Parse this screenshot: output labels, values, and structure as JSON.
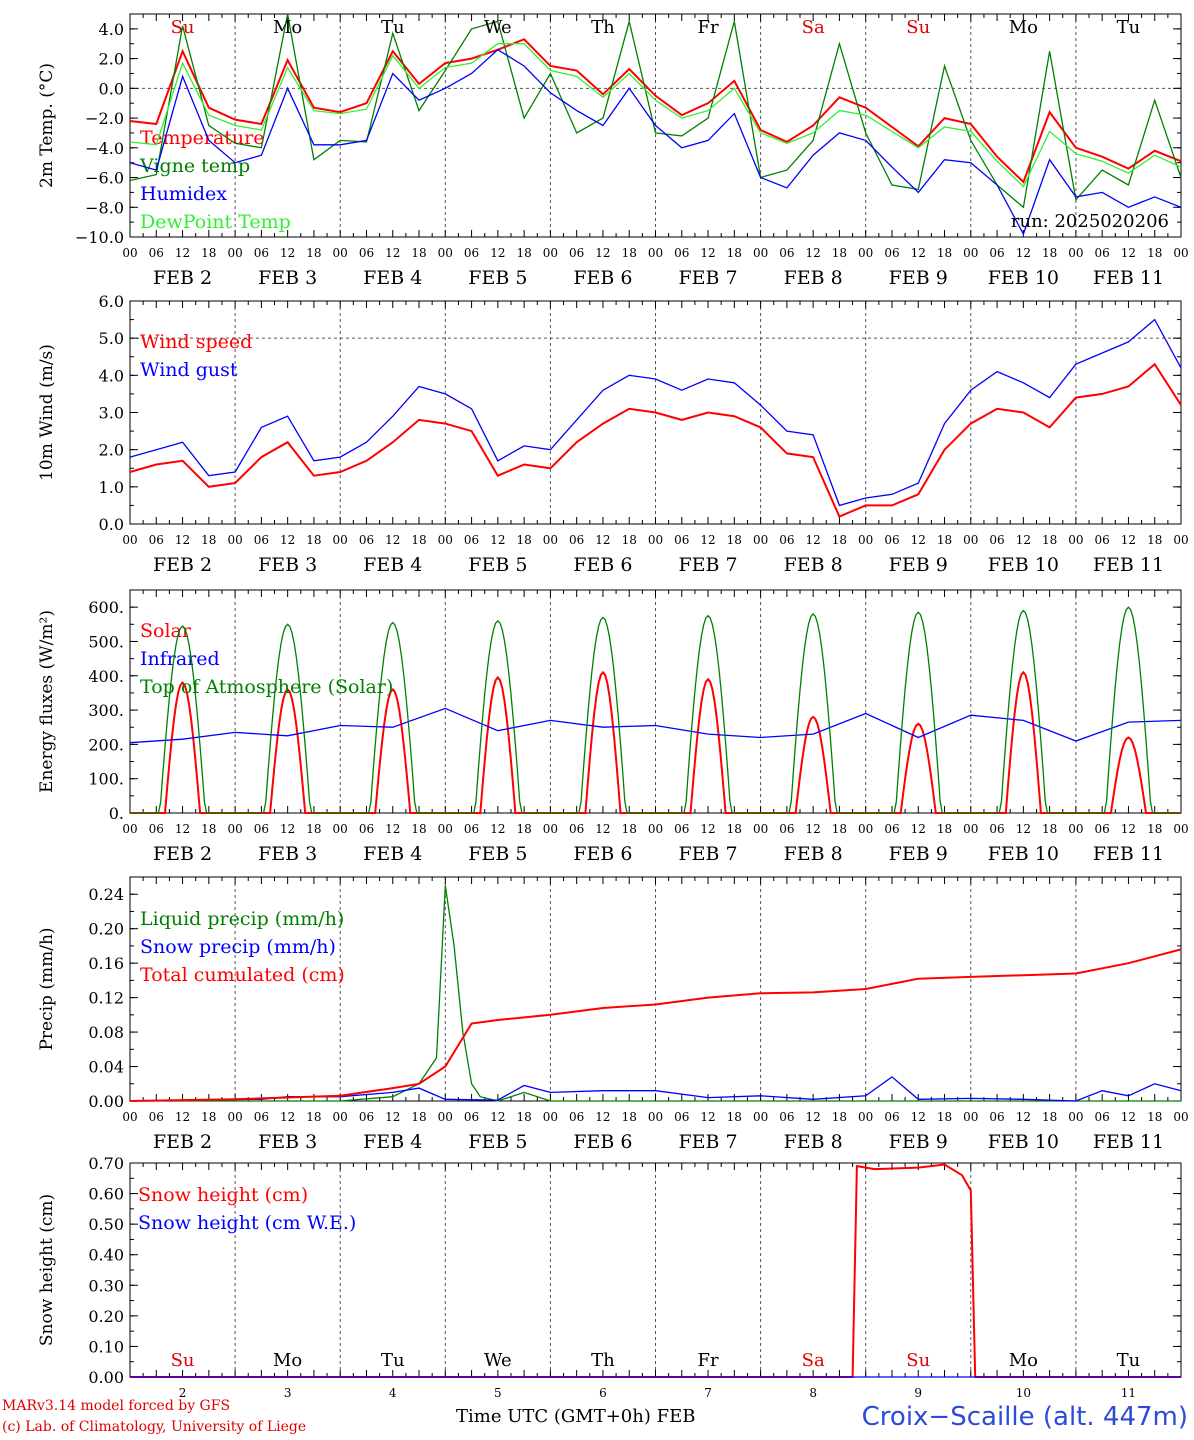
{
  "footer": {
    "model": "MARv3.14 model forced by GFS",
    "lab": "(c) Lab. of Climatology, University of Liege",
    "time_axis": "Time UTC (GMT+0h) FEB",
    "station": "Croix−Scaille (alt. 447m)"
  },
  "colors": {
    "red": "#ff0000",
    "green": "#008000",
    "blue": "#0000ff",
    "lightgreen": "#33ee33",
    "grid": "#555555"
  },
  "hour_ticks": [
    "00",
    "06",
    "12",
    "18"
  ],
  "day_labels": [
    "FEB  2",
    "FEB  3",
    "FEB  4",
    "FEB  5",
    "FEB  6",
    "FEB  7",
    "FEB  8",
    "FEB  9",
    "FEB 10",
    "FEB 11"
  ],
  "weekday_labels": [
    {
      "text": "Su",
      "color": "#e00000"
    },
    {
      "text": "Mo",
      "color": "#000000"
    },
    {
      "text": "Tu",
      "color": "#000000"
    },
    {
      "text": "We",
      "color": "#000000"
    },
    {
      "text": "Th",
      "color": "#000000"
    },
    {
      "text": "Fr",
      "color": "#000000"
    },
    {
      "text": "Sa",
      "color": "#e00000"
    },
    {
      "text": "Su",
      "color": "#e00000"
    },
    {
      "text": "Mo",
      "color": "#000000"
    },
    {
      "text": "Tu",
      "color": "#000000"
    }
  ],
  "day_numbers": [
    "2",
    "3",
    "4",
    "5",
    "6",
    "7",
    "8",
    "9",
    "10",
    "11"
  ],
  "chart_data": [
    {
      "type": "line",
      "ylabel": "2m Temp. (°C)",
      "ylim": [
        -10,
        5
      ],
      "yticks": [
        -10,
        -8,
        -6,
        -4,
        -2,
        0,
        2,
        4
      ],
      "ytick_labels": [
        "−10.0",
        "−8.0",
        "−6.0",
        "−4.0",
        "−2.0",
        "0.0",
        "2.0",
        "4.0"
      ],
      "dashed_y": [
        0
      ],
      "annotation": "run: 2025020206",
      "x_hours": [
        0,
        6,
        12,
        18,
        24,
        30,
        36,
        42,
        48,
        54,
        60,
        66,
        72,
        78,
        84,
        90,
        96,
        102,
        108,
        114,
        120,
        126,
        132,
        138,
        144,
        150,
        156,
        162,
        168,
        174,
        180,
        186,
        192,
        198,
        204,
        210,
        216,
        222,
        228,
        234,
        240
      ],
      "series": [
        {
          "name": "Temperature",
          "color": "#ff0000",
          "values": [
            -2.2,
            -2.4,
            2.5,
            -1.3,
            -2.1,
            -2.4,
            1.9,
            -1.3,
            -1.6,
            -1.0,
            2.5,
            0.3,
            1.7,
            2.0,
            2.6,
            3.3,
            1.5,
            1.2,
            -0.4,
            1.3,
            -0.5,
            -1.8,
            -1.0,
            0.5,
            -2.8,
            -3.6,
            -2.5,
            -0.6,
            -1.3,
            -2.6,
            -3.9,
            -2.0,
            -2.4,
            -4.6,
            -6.3,
            -1.6,
            -4.0,
            -4.6,
            -5.4,
            -4.2,
            -4.9
          ]
        },
        {
          "name": "Vigne temp",
          "color": "#008000",
          "values": [
            -6.2,
            -5.8,
            4.2,
            -2.5,
            -3.7,
            -4.0,
            5.0,
            -4.8,
            -3.5,
            -3.6,
            3.7,
            -1.5,
            1.2,
            4.0,
            4.5,
            -2.0,
            1.0,
            -3.0,
            -2.0,
            4.5,
            -3.0,
            -3.2,
            -2.0,
            4.5,
            -6.0,
            -5.5,
            -3.5,
            3.0,
            -3.0,
            -6.5,
            -6.8,
            1.5,
            -3.5,
            -6.5,
            -8.0,
            2.5,
            -7.5,
            -5.5,
            -6.5,
            -0.8,
            -6.0
          ]
        },
        {
          "name": "Humidex",
          "color": "#0000ff",
          "values": [
            -5.0,
            -5.5,
            0.8,
            -3.5,
            -5.0,
            -4.5,
            0.0,
            -3.8,
            -3.8,
            -3.5,
            1.0,
            -0.8,
            0.0,
            1.0,
            2.6,
            1.5,
            -0.3,
            -1.5,
            -2.5,
            0.0,
            -2.5,
            -4.0,
            -3.5,
            -1.7,
            -6.0,
            -6.7,
            -4.5,
            -3.0,
            -3.5,
            -5.3,
            -7.0,
            -4.8,
            -5.0,
            -6.5,
            -9.8,
            -4.8,
            -7.3,
            -7.0,
            -8.0,
            -7.3,
            -8.0
          ]
        },
        {
          "name": "DewPoint Temp",
          "color": "#33ee33",
          "values": [
            -3.6,
            -3.8,
            1.7,
            -1.8,
            -2.5,
            -2.8,
            1.4,
            -1.5,
            -1.7,
            -1.4,
            2.2,
            0.0,
            1.4,
            1.7,
            3.0,
            3.0,
            1.2,
            0.8,
            -0.6,
            1.0,
            -0.8,
            -2.0,
            -1.5,
            0.0,
            -3.0,
            -3.7,
            -3.0,
            -1.5,
            -1.8,
            -2.9,
            -4.0,
            -2.6,
            -2.9,
            -4.9,
            -6.6,
            -2.9,
            -4.4,
            -4.9,
            -5.7,
            -4.5,
            -5.3
          ]
        }
      ]
    },
    {
      "type": "line",
      "ylabel": "10m Wind (m/s)",
      "ylim": [
        0,
        6
      ],
      "yticks": [
        0,
        1,
        2,
        3,
        4,
        5,
        6
      ],
      "ytick_labels": [
        "0.0",
        "1.0",
        "2.0",
        "3.0",
        "4.0",
        "5.0",
        "6.0"
      ],
      "dashed_y": [
        5
      ],
      "x_hours": [
        0,
        6,
        12,
        18,
        24,
        30,
        36,
        42,
        48,
        54,
        60,
        66,
        72,
        78,
        84,
        90,
        96,
        102,
        108,
        114,
        120,
        126,
        132,
        138,
        144,
        150,
        156,
        162,
        168,
        174,
        180,
        186,
        192,
        198,
        204,
        210,
        216,
        222,
        228,
        234,
        240
      ],
      "series": [
        {
          "name": "Wind speed",
          "color": "#ff0000",
          "values": [
            1.4,
            1.6,
            1.7,
            1.0,
            1.1,
            1.8,
            2.2,
            1.3,
            1.4,
            1.7,
            2.2,
            2.8,
            2.7,
            2.5,
            1.3,
            1.6,
            1.5,
            2.2,
            2.7,
            3.1,
            3.0,
            2.8,
            3.0,
            2.9,
            2.6,
            1.9,
            1.8,
            0.2,
            0.5,
            0.5,
            0.8,
            2.0,
            2.7,
            3.1,
            3.0,
            2.6,
            3.4,
            3.5,
            3.7,
            4.3,
            3.2
          ]
        },
        {
          "name": "Wind gust",
          "color": "#0000ff",
          "values": [
            1.8,
            2.0,
            2.2,
            1.3,
            1.4,
            2.6,
            2.9,
            1.7,
            1.8,
            2.2,
            2.9,
            3.7,
            3.5,
            3.1,
            1.7,
            2.1,
            2.0,
            2.8,
            3.6,
            4.0,
            3.9,
            3.6,
            3.9,
            3.8,
            3.2,
            2.5,
            2.4,
            0.5,
            0.7,
            0.8,
            1.1,
            2.7,
            3.6,
            4.1,
            3.8,
            3.4,
            4.3,
            4.6,
            4.9,
            5.5,
            4.2
          ]
        }
      ]
    },
    {
      "type": "line",
      "ylabel": "Energy fluxes (W/m²)",
      "ylim": [
        0,
        650
      ],
      "yticks": [
        0,
        100,
        200,
        300,
        400,
        500,
        600
      ],
      "ytick_labels": [
        "0.",
        "100.",
        "200.",
        "300.",
        "400.",
        "500.",
        "600."
      ],
      "daily_peak_hour": 12,
      "series": [
        {
          "name": "Solar",
          "color": "#ff0000",
          "daily_peaks": [
            380,
            360,
            360,
            395,
            410,
            390,
            280,
            260,
            410,
            220
          ]
        },
        {
          "name": "Infrared",
          "color": "#0000ff",
          "x_hours": [
            0,
            12,
            24,
            36,
            48,
            60,
            72,
            84,
            96,
            108,
            120,
            132,
            144,
            156,
            168,
            180,
            192,
            204,
            216,
            228,
            240
          ],
          "values": [
            205,
            215,
            235,
            225,
            255,
            250,
            305,
            240,
            270,
            250,
            255,
            230,
            220,
            230,
            290,
            220,
            285,
            270,
            210,
            265,
            270
          ]
        },
        {
          "name": "Top of Atmosphere (Solar)",
          "color": "#008000",
          "daily_peaks": [
            545,
            550,
            555,
            560,
            570,
            575,
            580,
            585,
            590,
            600
          ]
        }
      ]
    },
    {
      "type": "line",
      "ylabel": "Precip (mm/h)",
      "ylim": [
        0,
        0.26
      ],
      "yticks": [
        0,
        0.04,
        0.08,
        0.12,
        0.16,
        0.2,
        0.24
      ],
      "ytick_labels": [
        "0.00",
        "0.04",
        "0.08",
        "0.12",
        "0.16",
        "0.20",
        "0.24"
      ],
      "series": [
        {
          "name": "Liquid precip (mm/h)",
          "color": "#008000",
          "x_hours": [
            0,
            24,
            48,
            60,
            66,
            70,
            72,
            74,
            76,
            78,
            80,
            84,
            90,
            96,
            120,
            240
          ],
          "values": [
            0,
            0,
            0,
            0.005,
            0.02,
            0.05,
            0.25,
            0.18,
            0.08,
            0.02,
            0.005,
            0,
            0.01,
            0,
            0,
            0
          ]
        },
        {
          "name": "Snow precip (mm/h)",
          "color": "#0000ff",
          "x_hours": [
            0,
            30,
            36,
            48,
            60,
            66,
            72,
            84,
            90,
            96,
            108,
            120,
            132,
            144,
            156,
            168,
            174,
            180,
            192,
            204,
            216,
            222,
            228,
            234,
            240
          ],
          "values": [
            0,
            0.002,
            0.005,
            0.005,
            0.01,
            0.015,
            0.002,
            0.001,
            0.018,
            0.01,
            0.012,
            0.012,
            0.004,
            0.006,
            0.002,
            0.006,
            0.028,
            0.002,
            0.003,
            0.002,
            0.0,
            0.012,
            0.006,
            0.02,
            0.012
          ]
        },
        {
          "name": "Total cumulated (cm)",
          "color": "#ff0000",
          "x_hours": [
            0,
            24,
            48,
            60,
            66,
            72,
            78,
            84,
            96,
            108,
            120,
            132,
            144,
            156,
            168,
            180,
            192,
            204,
            216,
            228,
            240
          ],
          "values": [
            0,
            0.002,
            0.006,
            0.015,
            0.02,
            0.04,
            0.09,
            0.094,
            0.1,
            0.108,
            0.112,
            0.12,
            0.125,
            0.126,
            0.13,
            0.142,
            0.144,
            0.146,
            0.148,
            0.16,
            0.176
          ]
        }
      ]
    },
    {
      "type": "line",
      "ylabel": "Snow height (cm)",
      "ylim": [
        0,
        0.7
      ],
      "yticks": [
        0,
        0.1,
        0.2,
        0.3,
        0.4,
        0.5,
        0.6,
        0.7
      ],
      "ytick_labels": [
        "0.00",
        "0.10",
        "0.20",
        "0.30",
        "0.40",
        "0.50",
        "0.60",
        "0.70"
      ],
      "series": [
        {
          "name": "Snow height (cm)",
          "color": "#ff0000",
          "x_hours": [
            0,
            165,
            166,
            170,
            180,
            186,
            190,
            192,
            193,
            240
          ],
          "values": [
            0,
            0,
            0.69,
            0.68,
            0.685,
            0.695,
            0.66,
            0.61,
            0,
            0
          ]
        },
        {
          "name": "Snow height (cm W.E.)",
          "color": "#0000ff",
          "x_hours": [
            0,
            240
          ],
          "values": [
            0,
            0
          ]
        }
      ]
    }
  ]
}
